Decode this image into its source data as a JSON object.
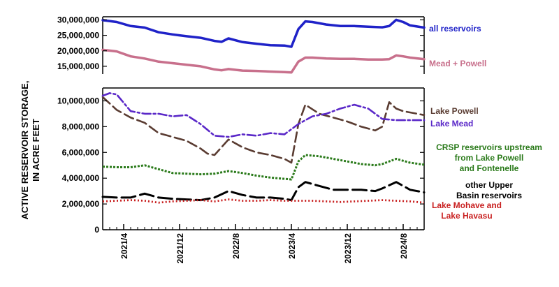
{
  "chart_data": {
    "type": "line",
    "ylabel": [
      "ACTIVE RESERVOIR STORAGE,",
      "IN ACRE FEET"
    ],
    "x_ticks": [
      "2021/4",
      "2021/12",
      "2022/8",
      "2023/4",
      "2023/12",
      "2024/8"
    ],
    "xlim": [
      "2021-01",
      "2024-11"
    ],
    "panels": [
      {
        "name": "top",
        "ylim": [
          12500000,
          31000000
        ],
        "y_ticks": [
          15000000,
          20000000,
          25000000,
          30000000
        ],
        "y_tick_labels": [
          "15,000,000",
          "20,000,000",
          "25,000,000",
          "30,000,000"
        ],
        "series": [
          {
            "name": "all reservoirs",
            "color": "#1f22c8",
            "style": "solid",
            "x": [
              "2021-01",
              "2021-03",
              "2021-05",
              "2021-07",
              "2021-09",
              "2021-11",
              "2022-01",
              "2022-03",
              "2022-05",
              "2022-06",
              "2022-07",
              "2022-09",
              "2022-11",
              "2023-01",
              "2023-03",
              "2023-04",
              "2023-05",
              "2023-06",
              "2023-07",
              "2023-09",
              "2023-11",
              "2024-01",
              "2024-03",
              "2024-05",
              "2024-06",
              "2024-07",
              "2024-08",
              "2024-09",
              "2024-11"
            ],
            "y": [
              29900000,
              29300000,
              28000000,
              27500000,
              26000000,
              25300000,
              24700000,
              24200000,
              23200000,
              22900000,
              24000000,
              22800000,
              22300000,
              21800000,
              21700000,
              21300000,
              27000000,
              29500000,
              29300000,
              28500000,
              28000000,
              28000000,
              27800000,
              27600000,
              28000000,
              30000000,
              29300000,
              28200000,
              27500000
            ]
          },
          {
            "name": "Mead + Powell",
            "color": "#c8708c",
            "style": "solid",
            "x": [
              "2021-01",
              "2021-03",
              "2021-05",
              "2021-07",
              "2021-09",
              "2021-11",
              "2022-01",
              "2022-03",
              "2022-05",
              "2022-06",
              "2022-07",
              "2022-09",
              "2022-11",
              "2023-01",
              "2023-03",
              "2023-04",
              "2023-05",
              "2023-06",
              "2023-07",
              "2023-09",
              "2023-11",
              "2024-01",
              "2024-03",
              "2024-05",
              "2024-06",
              "2024-07",
              "2024-08",
              "2024-09",
              "2024-11"
            ],
            "y": [
              20300000,
              19800000,
              18200000,
              17500000,
              16500000,
              16000000,
              15500000,
              15000000,
              14000000,
              13700000,
              14100000,
              13600000,
              13500000,
              13300000,
              13100000,
              13000000,
              16500000,
              17800000,
              17800000,
              17500000,
              17400000,
              17400000,
              17200000,
              17200000,
              17300000,
              18500000,
              18200000,
              17800000,
              17300000
            ]
          }
        ]
      },
      {
        "name": "bottom",
        "ylim": [
          0,
          11000000
        ],
        "y_ticks": [
          0,
          2000000,
          4000000,
          6000000,
          8000000,
          10000000
        ],
        "y_tick_labels": [
          "0",
          "2,000,000",
          "4,000,000",
          "6,000,000",
          "8,000,000",
          "10,000,000"
        ],
        "series": [
          {
            "name": "Lake Powell",
            "color": "#5a3c32",
            "style": "dash",
            "x": [
              "2021-01",
              "2021-03",
              "2021-05",
              "2021-07",
              "2021-09",
              "2021-11",
              "2022-01",
              "2022-03",
              "2022-04",
              "2022-05",
              "2022-07",
              "2022-09",
              "2022-11",
              "2023-01",
              "2023-03",
              "2023-04",
              "2023-05",
              "2023-06",
              "2023-08",
              "2023-10",
              "2023-12",
              "2024-02",
              "2024-04",
              "2024-05",
              "2024-06",
              "2024-07",
              "2024-08",
              "2024-10",
              "2024-11"
            ],
            "y": [
              10300000,
              9300000,
              8700000,
              8300000,
              7500000,
              7200000,
              6900000,
              6300000,
              5900000,
              5800000,
              7000000,
              6400000,
              6000000,
              5800000,
              5500000,
              5200000,
              8200000,
              9700000,
              9000000,
              8700000,
              8400000,
              8000000,
              7700000,
              8000000,
              9900000,
              9400000,
              9200000,
              9000000,
              8900000
            ]
          },
          {
            "name": "Lake Mead",
            "color": "#5a28c8",
            "style": "dashdot",
            "x": [
              "2021-01",
              "2021-02",
              "2021-03",
              "2021-05",
              "2021-07",
              "2021-09",
              "2021-11",
              "2022-01",
              "2022-03",
              "2022-05",
              "2022-07",
              "2022-09",
              "2022-11",
              "2023-01",
              "2023-03",
              "2023-05",
              "2023-07",
              "2023-09",
              "2023-11",
              "2024-01",
              "2024-03",
              "2024-05",
              "2024-07",
              "2024-09",
              "2024-11"
            ],
            "y": [
              10400000,
              10600000,
              10500000,
              9200000,
              9000000,
              9000000,
              8800000,
              8900000,
              8200000,
              7300000,
              7200000,
              7400000,
              7300000,
              7500000,
              7400000,
              8200000,
              8800000,
              9000000,
              9400000,
              9700000,
              9400000,
              8600000,
              8500000,
              8500000,
              8500000
            ]
          },
          {
            "name": "CRSP reservoirs upstream from Lake Powell and Fontenelle",
            "color": "#2a7a1a",
            "style": "dot",
            "x": [
              "2021-01",
              "2021-03",
              "2021-05",
              "2021-07",
              "2021-09",
              "2021-11",
              "2022-01",
              "2022-03",
              "2022-05",
              "2022-07",
              "2022-09",
              "2022-11",
              "2023-01",
              "2023-03",
              "2023-04",
              "2023-05",
              "2023-06",
              "2023-08",
              "2023-10",
              "2023-12",
              "2024-02",
              "2024-04",
              "2024-05",
              "2024-07",
              "2024-09",
              "2024-11"
            ],
            "y": [
              4900000,
              4850000,
              4850000,
              5000000,
              4700000,
              4400000,
              4350000,
              4300000,
              4350000,
              4550000,
              4400000,
              4200000,
              4050000,
              3950000,
              3900000,
              5300000,
              5800000,
              5700000,
              5500000,
              5300000,
              5100000,
              5000000,
              5100000,
              5500000,
              5200000,
              5050000
            ]
          },
          {
            "name": "other Upper Basin reservoirs",
            "color": "#000000",
            "style": "longdash",
            "x": [
              "2021-01",
              "2021-03",
              "2021-05",
              "2021-07",
              "2021-09",
              "2021-11",
              "2022-01",
              "2022-03",
              "2022-05",
              "2022-07",
              "2022-09",
              "2022-11",
              "2023-01",
              "2023-03",
              "2023-04",
              "2023-05",
              "2023-06",
              "2023-08",
              "2023-10",
              "2023-12",
              "2024-02",
              "2024-04",
              "2024-05",
              "2024-07",
              "2024-09",
              "2024-11"
            ],
            "y": [
              2550000,
              2500000,
              2500000,
              2800000,
              2500000,
              2400000,
              2350000,
              2300000,
              2500000,
              3000000,
              2700000,
              2500000,
              2500000,
              2400000,
              2300000,
              3300000,
              3700000,
              3400000,
              3100000,
              3100000,
              3100000,
              3000000,
              3200000,
              3700000,
              3100000,
              2900000
            ]
          },
          {
            "name": "Lake Mohave and Lake Havasu",
            "color": "#c81e1e",
            "style": "finedot",
            "x": [
              "2021-01",
              "2021-03",
              "2021-05",
              "2021-07",
              "2021-09",
              "2021-11",
              "2022-01",
              "2022-03",
              "2022-05",
              "2022-07",
              "2022-09",
              "2022-11",
              "2023-01",
              "2023-03",
              "2023-05",
              "2023-07",
              "2023-09",
              "2023-11",
              "2024-01",
              "2024-03",
              "2024-05",
              "2024-07",
              "2024-09",
              "2024-11"
            ],
            "y": [
              2200000,
              2250000,
              2300000,
              2250000,
              2100000,
              2200000,
              2250000,
              2300000,
              2200000,
              2350000,
              2250000,
              2250000,
              2300000,
              2250000,
              2250000,
              2250000,
              2200000,
              2150000,
              2200000,
              2250000,
              2300000,
              2250000,
              2200000,
              2100000
            ]
          }
        ]
      }
    ],
    "legend": [
      {
        "series": "all reservoirs",
        "lines": [
          "all reservoirs"
        ],
        "color": "#1f22c8"
      },
      {
        "series": "Mead + Powell",
        "lines": [
          "Mead + Powell"
        ],
        "color": "#c8708c"
      },
      {
        "series": "Lake Powell",
        "lines": [
          "Lake Powell"
        ],
        "color": "#5a3c32"
      },
      {
        "series": "Lake Mead",
        "lines": [
          "Lake Mead"
        ],
        "color": "#5a28c8"
      },
      {
        "series": "CRSP reservoirs upstream from Lake Powell and Fontenelle",
        "lines": [
          "CRSP reservoirs upstream",
          "from Lake Powell",
          "and Fontenelle"
        ],
        "color": "#2a7a1a"
      },
      {
        "series": "other Upper Basin reservoirs",
        "lines": [
          "other Upper",
          "Basin reservoirs"
        ],
        "color": "#000000"
      },
      {
        "series": "Lake Mohave and Lake Havasu",
        "lines": [
          "Lake Mohave and",
          "Lake Havasu"
        ],
        "color": "#c81e1e"
      }
    ],
    "grid": false,
    "legend_placement": "right"
  }
}
